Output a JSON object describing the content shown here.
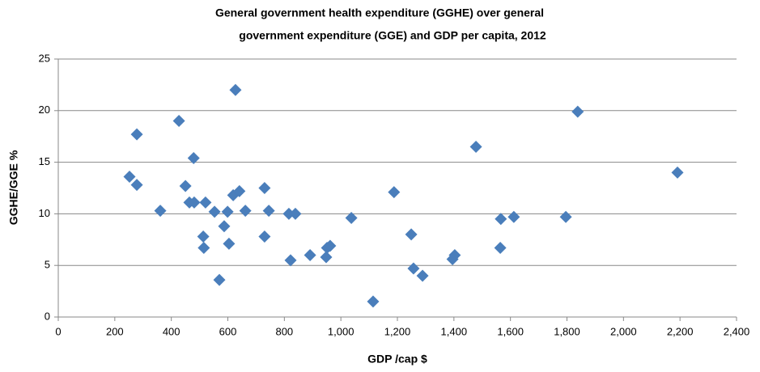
{
  "chart_data": {
    "type": "scatter",
    "title": [
      "General government health expenditure (GGHE) over general",
      "government expenditure (GGE) and GDP per capita, 2012"
    ],
    "xlabel": "GDP /cap $",
    "ylabel": "GGHE/GGE %",
    "color": "#4a7ebb",
    "grid": true,
    "xlim": [
      0,
      2400
    ],
    "ylim": [
      0,
      25
    ],
    "xticks": [
      0,
      200,
      400,
      600,
      800,
      {
        "value": 1000,
        "label": "1,000"
      },
      {
        "value": 1200,
        "label": "1,200"
      },
      {
        "value": 1400,
        "label": "1,400"
      },
      {
        "value": 1600,
        "label": "1,600"
      },
      {
        "value": 1800,
        "label": "1,800"
      },
      {
        "value": 2000,
        "label": "2,000"
      },
      {
        "value": 2200,
        "label": "2,200"
      },
      {
        "value": 2400,
        "label": "2,400"
      }
    ],
    "yticks": [
      0,
      5,
      10,
      15,
      20,
      25
    ],
    "x": [
      252,
      278,
      278,
      361,
      427,
      450,
      464,
      479,
      481,
      521,
      513,
      515,
      553,
      570,
      587,
      599,
      604,
      619,
      627,
      641,
      662,
      730,
      730,
      745,
      816,
      839,
      822,
      891,
      948,
      951,
      962,
      1037,
      1114,
      1188,
      1249,
      1257,
      1289,
      1395,
      1403,
      1478,
      1566,
      1564,
      1612,
      1796,
      1838,
      2191
    ],
    "values": [
      13.6,
      17.7,
      12.8,
      10.3,
      19.0,
      12.7,
      11.1,
      15.4,
      11.1,
      11.1,
      7.8,
      6.7,
      10.2,
      3.6,
      8.8,
      10.2,
      7.1,
      11.8,
      22.0,
      12.2,
      10.3,
      12.5,
      7.8,
      10.3,
      10.0,
      10.0,
      5.5,
      6.0,
      5.8,
      6.7,
      6.9,
      9.6,
      1.5,
      12.1,
      8.0,
      4.7,
      4.0,
      5.6,
      6.0,
      16.5,
      9.5,
      6.7,
      9.7,
      9.7,
      19.9,
      14.0
    ]
  }
}
